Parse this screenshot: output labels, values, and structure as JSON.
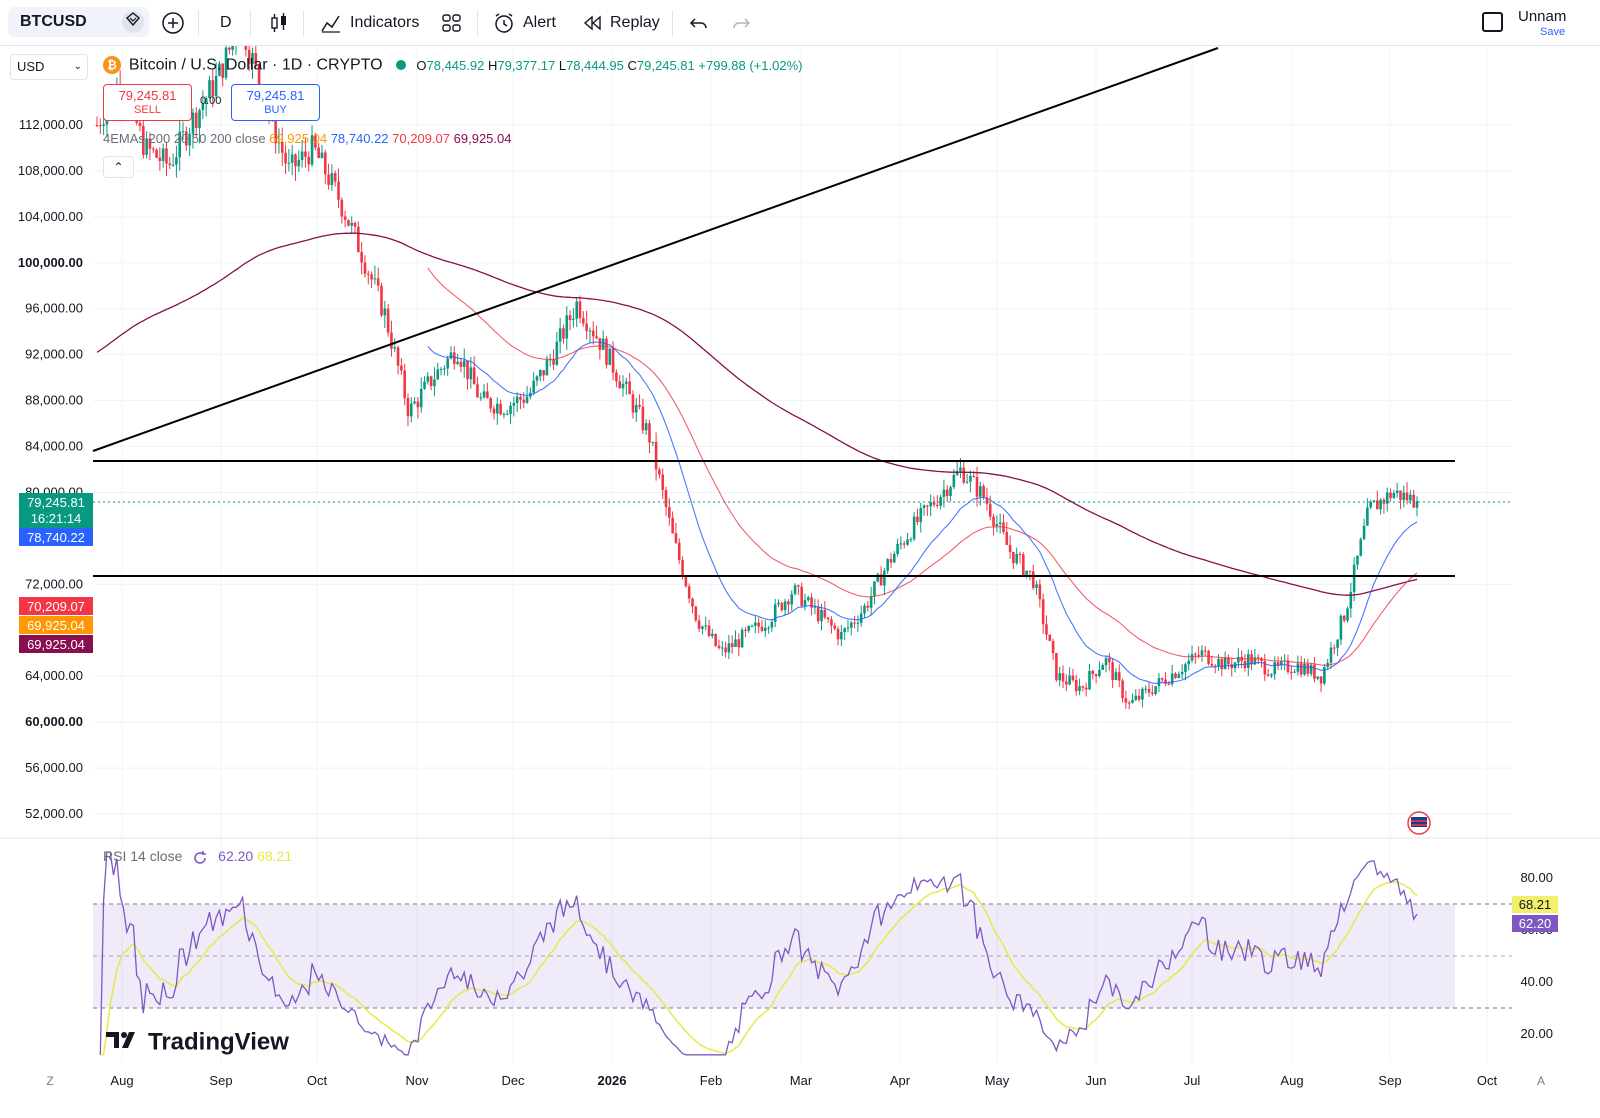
{
  "toolbar": {
    "symbol": "BTCUSD",
    "interval": "D",
    "indicators_label": "Indicators",
    "alert_label": "Alert",
    "replay_label": "Replay",
    "layout_name": "Unnam",
    "save_label": "Save"
  },
  "currency_selector": "USD",
  "legend": {
    "coin_glyph": "₿",
    "title": "Bitcoin / U.S. Dollar · 1D · CRYPTO",
    "open_label": "O",
    "open": "78,445.92",
    "high_label": "H",
    "high": "79,377.17",
    "low_label": "L",
    "low": "78,444.95",
    "close_label": "C",
    "close": "79,245.81",
    "change": "+799.88 (+1.02%)"
  },
  "trade": {
    "sell_price": "79,245.81",
    "sell_label": "SELL",
    "spread": "0.00",
    "buy_price": "79,245.81",
    "buy_label": "BUY"
  },
  "ema_legend": {
    "name": "4EMAs 200 20 50 200 close",
    "v1": "69,925.04",
    "v2": "78,740.22",
    "v3": "70,209.07",
    "v4": "69,925.04"
  },
  "collapse_glyph": "⌃",
  "price_badges": {
    "last_price": "79,245.81",
    "countdown": "16:21:14",
    "ema20": "78,740.22",
    "ema50": "70,209.07",
    "ema200_a": "69,925.04",
    "ema200_b": "69,925.04"
  },
  "rsi_legend": {
    "name": "RSI 14 close",
    "rsi": "62.20",
    "ma": "68.21"
  },
  "rsi_badges": {
    "ma": "68.21",
    "rsi": "62.20"
  },
  "rsi_axis": [
    "80.00",
    "60.00",
    "40.00",
    "20.00"
  ],
  "tv_logo": "TradingView",
  "time_axis_left": "Z",
  "time_axis_right": "A",
  "colors": {
    "up": "#089981",
    "down": "#f23645",
    "ema20": "#2962ff",
    "ema50": "#f23645",
    "ema200": "#880e4f",
    "ema_orange": "#ff9800",
    "rsi_line": "#7e57c2",
    "rsi_ma": "#e8e84b"
  },
  "chart_data": {
    "type": "candlestick",
    "y_axis_labels": [
      "112,000.00",
      "108,000.00",
      "104,000.00",
      "100,000.00",
      "96,000.00",
      "92,000.00",
      "88,000.00",
      "84,000.00",
      "80,000.00",
      "72,000.00",
      "64,000.00",
      "60,000.00",
      "56,000.00",
      "52,000.00"
    ],
    "x_axis_labels": [
      "Aug",
      "Sep",
      "Oct",
      "Nov",
      "Dec",
      "2026",
      "Feb",
      "Mar",
      "Apr",
      "May",
      "Jun",
      "Jul",
      "Aug",
      "Sep",
      "Oct"
    ],
    "close_path": [
      {
        "d": "Aug",
        "v": 112000
      },
      {
        "d": "Aug",
        "v": 116000
      },
      {
        "d": "Sep",
        "v": 110000
      },
      {
        "d": "Sep",
        "v": 108500
      },
      {
        "d": "Sep",
        "v": 112500
      },
      {
        "d": "Oct",
        "v": 116000
      },
      {
        "d": "Oct",
        "v": 121000
      },
      {
        "d": "Oct",
        "v": 114000
      },
      {
        "d": "Oct",
        "v": 108000
      },
      {
        "d": "Nov",
        "v": 110000
      },
      {
        "d": "Nov",
        "v": 106000
      },
      {
        "d": "Nov",
        "v": 101000
      },
      {
        "d": "Nov",
        "v": 95500
      },
      {
        "d": "Nov",
        "v": 87000
      },
      {
        "d": "Dec",
        "v": 90000
      },
      {
        "d": "Dec",
        "v": 92500
      },
      {
        "d": "Dec",
        "v": 88000
      },
      {
        "d": "Dec",
        "v": 87500
      },
      {
        "d": "Dec",
        "v": 88500
      },
      {
        "d": "2026",
        "v": 92000
      },
      {
        "d": "2026",
        "v": 96500
      },
      {
        "d": "2026",
        "v": 93000
      },
      {
        "d": "2026",
        "v": 89000
      },
      {
        "d": "Feb",
        "v": 85000
      },
      {
        "d": "Feb",
        "v": 76000
      },
      {
        "d": "Feb",
        "v": 69000
      },
      {
        "d": "Feb",
        "v": 66000
      },
      {
        "d": "Mar",
        "v": 67500
      },
      {
        "d": "Mar",
        "v": 69000
      },
      {
        "d": "Mar",
        "v": 71500
      },
      {
        "d": "Mar",
        "v": 69500
      },
      {
        "d": "Apr",
        "v": 67500
      },
      {
        "d": "Apr",
        "v": 70000
      },
      {
        "d": "Apr",
        "v": 74000
      },
      {
        "d": "Apr",
        "v": 77000
      },
      {
        "d": "May",
        "v": 79500
      },
      {
        "d": "May",
        "v": 82000
      },
      {
        "d": "May",
        "v": 79500
      },
      {
        "d": "May",
        "v": 75000
      },
      {
        "d": "Jun",
        "v": 72500
      },
      {
        "d": "Jun",
        "v": 64000
      },
      {
        "d": "Jun",
        "v": 63000
      },
      {
        "d": "Jun",
        "v": 65500
      },
      {
        "d": "Jun",
        "v": 61500
      },
      {
        "d": "Jul",
        "v": 63000
      },
      {
        "d": "Jul",
        "v": 64500
      },
      {
        "d": "Jul",
        "v": 66000
      },
      {
        "d": "Jul",
        "v": 65000
      },
      {
        "d": "Aug",
        "v": 65500
      },
      {
        "d": "Aug",
        "v": 64500
      },
      {
        "d": "Aug",
        "v": 65000
      },
      {
        "d": "Aug",
        "v": 64000
      },
      {
        "d": "Aug",
        "v": 69500
      },
      {
        "d": "Sep",
        "v": 78500
      },
      {
        "d": "Sep",
        "v": 80000
      },
      {
        "d": "Sep",
        "v": 79245.81
      }
    ],
    "trendline": {
      "from": {
        "date": "Aug",
        "price": 83500
      },
      "to": {
        "date": "Jun",
        "price": 123000
      }
    },
    "horizontal_levels": [
      82800,
      72800
    ],
    "ema20_last": 78740.22,
    "ema50_last": 70209.07,
    "ema200_last": 69925.04,
    "rsi_last": 62.2,
    "rsi_ma_last": 68.21,
    "rsi_bands": [
      70,
      50,
      30
    ]
  }
}
